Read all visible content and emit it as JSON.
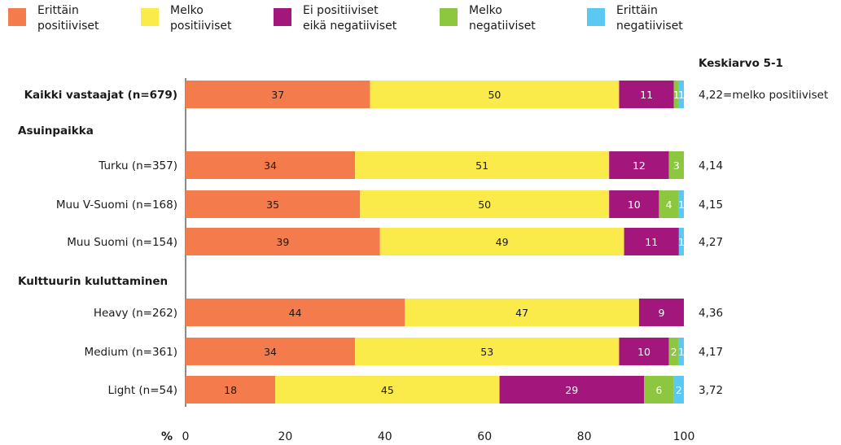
{
  "colors": {
    "very_positive": "#F47B4B",
    "fairly_positive": "#FBEB4A",
    "neutral": "#A3177C",
    "fairly_negative": "#8DC63F",
    "very_negative": "#5BC8F2"
  },
  "chart_data": {
    "type": "bar",
    "orientation": "horizontal",
    "stacked": true,
    "xlim": [
      0,
      100
    ],
    "x_ticks": [
      "0",
      "20",
      "40",
      "60",
      "80",
      "100"
    ],
    "x_unit": "%",
    "mean_header": "Keskiarvo 5-1",
    "legend_placement": "top",
    "series": [
      {
        "key": "very_positive",
        "name_lines": [
          "Erittäin",
          "positiiviset"
        ],
        "color": "#F47B4B",
        "text_color": "#1a1a1a"
      },
      {
        "key": "fairly_positive",
        "name_lines": [
          "Melko",
          "positiiviset"
        ],
        "color": "#FBEB4A",
        "text_color": "#1a1a1a"
      },
      {
        "key": "neutral",
        "name_lines": [
          "Ei positiiviset",
          "eikä negatiiviset"
        ],
        "color": "#A3177C",
        "text_color": "#ffffff"
      },
      {
        "key": "fairly_negative",
        "name_lines": [
          "Melko",
          "negatiiviset"
        ],
        "color": "#8DC63F",
        "text_color": "#ffffff"
      },
      {
        "key": "very_negative",
        "name_lines": [
          "Erittäin",
          "negatiiviset"
        ],
        "color": "#5BC8F2",
        "text_color": "#ffffff"
      }
    ],
    "rows": [
      {
        "label": "Kaikki vastaajat (n=679)",
        "bold": true,
        "values": [
          37,
          50,
          11,
          1,
          1
        ],
        "mean": "4,22=melko positiiviset"
      },
      {
        "group": "Asuinpaikka"
      },
      {
        "label": "Turku (n=357)",
        "values": [
          34,
          51,
          12,
          3,
          0
        ],
        "mean": "4,14"
      },
      {
        "label": "Muu V-Suomi (n=168)",
        "values": [
          35,
          50,
          10,
          4,
          1
        ],
        "mean": "4,15"
      },
      {
        "label": "Muu Suomi (n=154)",
        "values": [
          39,
          49,
          11,
          0,
          1
        ],
        "mean": "4,27"
      },
      {
        "group": "Kulttuurin kuluttaminen"
      },
      {
        "label": "Heavy (n=262)",
        "values": [
          44,
          47,
          9,
          0,
          0
        ],
        "mean": "4,36"
      },
      {
        "label": "Medium (n=361)",
        "values": [
          34,
          53,
          10,
          2,
          1
        ],
        "mean": "4,17"
      },
      {
        "label": "Light (n=54)",
        "values": [
          18,
          45,
          29,
          6,
          2
        ],
        "mean": "3,72"
      }
    ]
  }
}
